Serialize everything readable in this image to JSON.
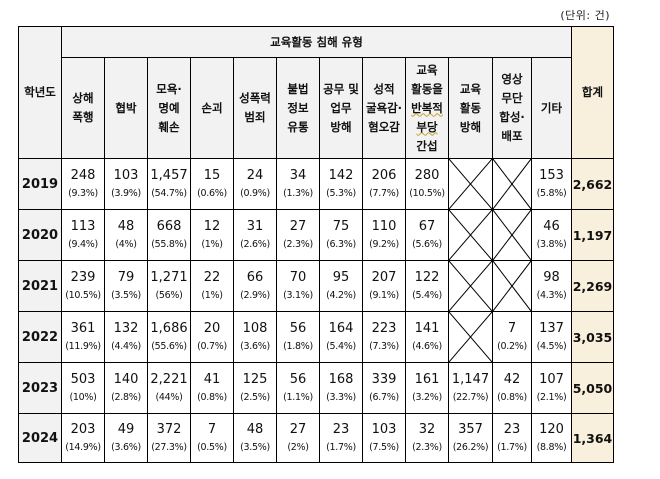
{
  "unit_label": "(단위: 건)",
  "headers": {
    "year": "학년도",
    "group": "교육활동 침해 유형",
    "total": "합계",
    "types": [
      [
        "상해",
        "폭행"
      ],
      [
        "협박"
      ],
      [
        "모욕·",
        "명예",
        "훼손"
      ],
      [
        "손괴"
      ],
      [
        "성폭력",
        "범죄"
      ],
      [
        "불법",
        "정보",
        "유통"
      ],
      [
        "공무 및",
        "업무",
        "방해"
      ],
      [
        "성적",
        "굴욕감·",
        "혐오감"
      ],
      [
        "교육",
        "활동을",
        "반복적",
        "부당",
        "간섭"
      ],
      [
        "교육",
        "활동",
        "방해"
      ],
      [
        "영상",
        "무단",
        "합성·",
        "배포"
      ],
      [
        "기타"
      ]
    ]
  },
  "rows": [
    {
      "year": "2019",
      "total": "2,662",
      "cells": [
        [
          "248",
          "(9.3%)"
        ],
        [
          "103",
          "(3.9%)"
        ],
        [
          "1,457",
          "(54.7%)"
        ],
        [
          "15",
          "(0.6%)"
        ],
        [
          "24",
          "(0.9%)"
        ],
        [
          "34",
          "(1.3%)"
        ],
        [
          "142",
          "(5.3%)"
        ],
        [
          "206",
          "(7.7%)"
        ],
        [
          "280",
          "(10.5%)"
        ],
        null,
        null,
        [
          "153",
          "(5.8%)"
        ]
      ]
    },
    {
      "year": "2020",
      "total": "1,197",
      "cells": [
        [
          "113",
          "(9.4%)"
        ],
        [
          "48",
          "(4%)"
        ],
        [
          "668",
          "(55.8%)"
        ],
        [
          "12",
          "(1%)"
        ],
        [
          "31",
          "(2.6%)"
        ],
        [
          "27",
          "(2.3%)"
        ],
        [
          "75",
          "(6.3%)"
        ],
        [
          "110",
          "(9.2%)"
        ],
        [
          "67",
          "(5.6%)"
        ],
        null,
        null,
        [
          "46",
          "(3.8%)"
        ]
      ]
    },
    {
      "year": "2021",
      "total": "2,269",
      "cells": [
        [
          "239",
          "(10.5%)"
        ],
        [
          "79",
          "(3.5%)"
        ],
        [
          "1,271",
          "(56%)"
        ],
        [
          "22",
          "(1%)"
        ],
        [
          "66",
          "(2.9%)"
        ],
        [
          "70",
          "(3.1%)"
        ],
        [
          "95",
          "(4.2%)"
        ],
        [
          "207",
          "(9.1%)"
        ],
        [
          "122",
          "(5.4%)"
        ],
        null,
        null,
        [
          "98",
          "(4.3%)"
        ]
      ]
    },
    {
      "year": "2022",
      "total": "3,035",
      "cells": [
        [
          "361",
          "(11.9%)"
        ],
        [
          "132",
          "(4.4%)"
        ],
        [
          "1,686",
          "(55.6%)"
        ],
        [
          "20",
          "(0.7%)"
        ],
        [
          "108",
          "(3.6%)"
        ],
        [
          "56",
          "(1.8%)"
        ],
        [
          "164",
          "(5.4%)"
        ],
        [
          "223",
          "(7.3%)"
        ],
        [
          "141",
          "(4.6%)"
        ],
        null,
        [
          "7",
          "(0.2%)"
        ],
        [
          "137",
          "(4.5%)"
        ]
      ]
    },
    {
      "year": "2023",
      "total": "5,050",
      "cells": [
        [
          "503",
          "(10%)"
        ],
        [
          "140",
          "(2.8%)"
        ],
        [
          "2,221",
          "(44%)"
        ],
        [
          "41",
          "(0.8%)"
        ],
        [
          "125",
          "(2.5%)"
        ],
        [
          "56",
          "(1.1%)"
        ],
        [
          "168",
          "(3.3%)"
        ],
        [
          "339",
          "(6.7%)"
        ],
        [
          "161",
          "(3.2%)"
        ],
        [
          "1,147",
          "(22.7%)"
        ],
        [
          "42",
          "(0.8%)"
        ],
        [
          "107",
          "(2.1%)"
        ]
      ]
    },
    {
      "year": "2024",
      "total": "1,364",
      "cells": [
        [
          "203",
          "(14.9%)"
        ],
        [
          "49",
          "(3.6%)"
        ],
        [
          "372",
          "(27.3%)"
        ],
        [
          "7",
          "(0.5%)"
        ],
        [
          "48",
          "(3.5%)"
        ],
        [
          "27",
          "(2%)"
        ],
        [
          "23",
          "(1.7%)"
        ],
        [
          "103",
          "(7.5%)"
        ],
        [
          "32",
          "(2.3%)"
        ],
        [
          "357",
          "(26.2%)"
        ],
        [
          "23",
          "(1.7%)"
        ],
        [
          "120",
          "(8.8%)"
        ]
      ]
    }
  ]
}
